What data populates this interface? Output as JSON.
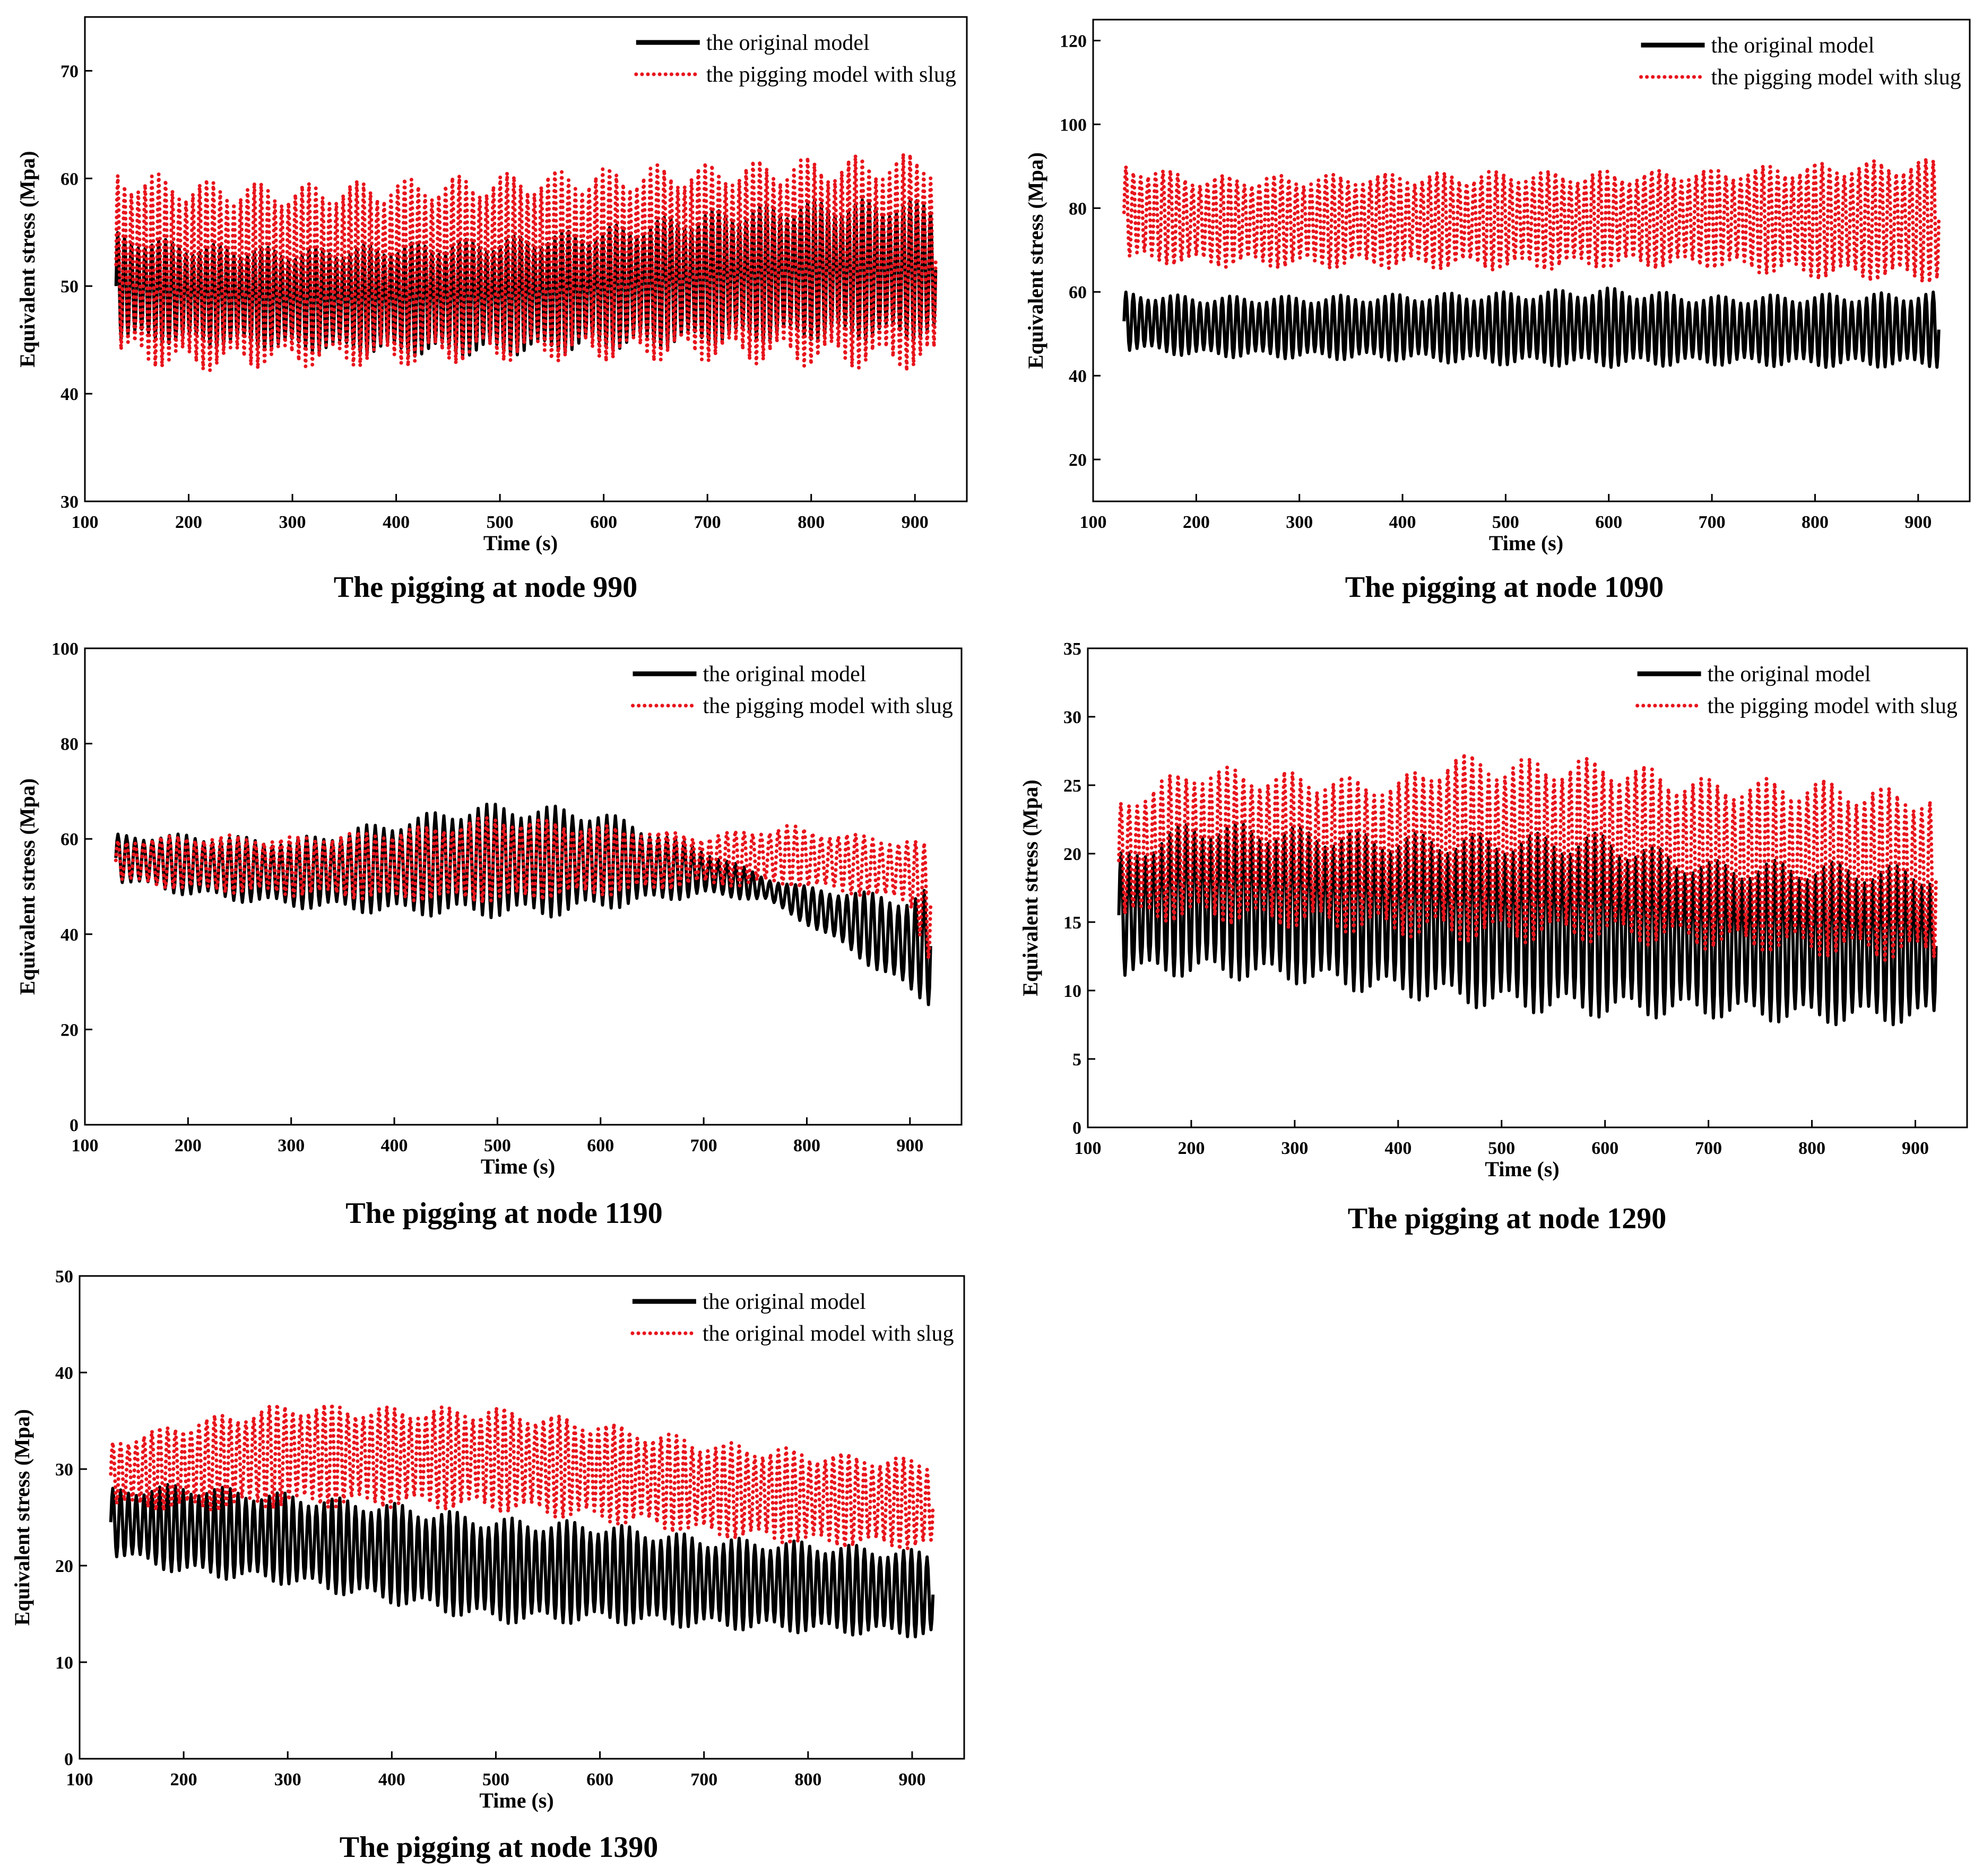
{
  "chart_data": [
    {
      "type": "line",
      "caption": "The pigging at node 990",
      "xlabel": "Time  (s)",
      "ylabel": "Equivalent stress (Mpa)",
      "xlim": [
        100,
        950
      ],
      "ylim": [
        30,
        75
      ],
      "xticks": [
        100,
        200,
        300,
        400,
        500,
        600,
        700,
        800,
        900
      ],
      "yticks": [
        30,
        40,
        50,
        60,
        70
      ],
      "legend_position": "top-right",
      "series": [
        {
          "name": "the original model",
          "color": "#000000",
          "style": "solid",
          "t_start": 130,
          "t_end": 920,
          "cycles": 120,
          "x": [
            130,
            200,
            300,
            400,
            500,
            600,
            700,
            800,
            920
          ],
          "upper": [
            55,
            54,
            53.5,
            54,
            54.5,
            55.5,
            57,
            58,
            58
          ],
          "lower": [
            45,
            44.5,
            44,
            43.5,
            43.5,
            44,
            44.5,
            45,
            45
          ]
        },
        {
          "name": "the pigging model with slug",
          "color": "#e8141c",
          "style": "dotted",
          "t_start": 130,
          "t_end": 920,
          "cycles": 120,
          "x": [
            130,
            200,
            300,
            400,
            500,
            600,
            700,
            800,
            920
          ],
          "upper": [
            61,
            60,
            59.5,
            60,
            60.5,
            61,
            61.5,
            62,
            62.5
          ],
          "lower": [
            43,
            42,
            42.5,
            42.5,
            43,
            43,
            43,
            42.5,
            42
          ]
        }
      ]
    },
    {
      "type": "line",
      "caption": "The pigging at node 1090",
      "xlabel": "Time  (s)",
      "ylabel": "Equivalent stress (Mpa)",
      "xlim": [
        100,
        950
      ],
      "ylim": [
        10,
        125
      ],
      "xticks": [
        100,
        200,
        300,
        400,
        500,
        600,
        700,
        800,
        900
      ],
      "yticks": [
        20,
        40,
        60,
        80,
        100,
        120
      ],
      "legend_position": "top-right",
      "series": [
        {
          "name": "the original model",
          "color": "#000000",
          "style": "solid",
          "t_start": 130,
          "t_end": 920,
          "cycles": 110,
          "x": [
            130,
            200,
            300,
            400,
            500,
            600,
            700,
            800,
            920
          ],
          "upper": [
            60,
            59,
            59,
            59.5,
            60,
            61,
            59,
            59.5,
            60
          ],
          "lower": [
            46,
            44.5,
            44,
            43.5,
            42.5,
            42,
            42.5,
            42,
            42
          ]
        },
        {
          "name": "the pigging model with slug",
          "color": "#e8141c",
          "style": "dotted",
          "t_start": 130,
          "t_end": 920,
          "cycles": 110,
          "x": [
            130,
            200,
            300,
            400,
            500,
            600,
            700,
            800,
            920
          ],
          "upper": [
            91,
            88,
            88,
            88.5,
            89,
            89,
            89.5,
            91,
            92
          ],
          "lower": [
            67,
            66,
            65.5,
            65.5,
            65,
            65.5,
            65.5,
            63,
            62
          ]
        }
      ]
    },
    {
      "type": "line",
      "caption": "The pigging at node 1190",
      "xlabel": "Time  (s)",
      "ylabel": "Equivalent stress (Mpa)",
      "xlim": [
        100,
        950
      ],
      "ylim": [
        0,
        100
      ],
      "xticks": [
        100,
        200,
        300,
        400,
        500,
        600,
        700,
        800,
        900
      ],
      "yticks": [
        0,
        20,
        40,
        60,
        80,
        100
      ],
      "legend_position": "top-right",
      "series": [
        {
          "name": "the original model",
          "color": "#000000",
          "style": "solid",
          "t_start": 130,
          "t_end": 920,
          "cycles": 95,
          "x": [
            130,
            200,
            300,
            400,
            480,
            550,
            600,
            700,
            760,
            800,
            850,
            900,
            920
          ],
          "upper": [
            61,
            61,
            60,
            64,
            67.5,
            67,
            66,
            58,
            52,
            50,
            49,
            48,
            50
          ],
          "lower": [
            51,
            48,
            45.5,
            44,
            43.5,
            43.5,
            45,
            48,
            47,
            42,
            35,
            27,
            25
          ]
        },
        {
          "name": "the pigging model with slug",
          "color": "#e8141c",
          "style": "dotted",
          "t_start": 130,
          "t_end": 920,
          "cycles": 95,
          "x": [
            130,
            200,
            300,
            400,
            500,
            600,
            700,
            780,
            850,
            900,
            920
          ],
          "upper": [
            60,
            61,
            60.5,
            62,
            65,
            63,
            61,
            63,
            61,
            60,
            59
          ],
          "lower": [
            51,
            49,
            48,
            47,
            46.5,
            48,
            50,
            50,
            48,
            46,
            33
          ]
        }
      ]
    },
    {
      "type": "line",
      "caption": "The pigging at node 1290",
      "xlabel": "Time (s)",
      "ylabel": "Equivalent stress (Mpa)",
      "xlim": [
        100,
        950
      ],
      "ylim": [
        0,
        35
      ],
      "xticks": [
        100,
        200,
        300,
        400,
        500,
        600,
        700,
        800,
        900
      ],
      "yticks": [
        0,
        5,
        10,
        15,
        20,
        25,
        30,
        35
      ],
      "legend_position": "top-right",
      "series": [
        {
          "name": "the original model",
          "color": "#000000",
          "style": "solid",
          "t_start": 130,
          "t_end": 920,
          "cycles": 100,
          "x": [
            130,
            200,
            300,
            400,
            500,
            600,
            700,
            800,
            920
          ],
          "upper": [
            20,
            22.5,
            22,
            21.5,
            21.5,
            21.5,
            19.5,
            19.5,
            19
          ],
          "lower": [
            11,
            11,
            10.5,
            9.5,
            8.5,
            8,
            8,
            7.5,
            7.5
          ]
        },
        {
          "name": "the pigging model with slug",
          "color": "#e8141c",
          "style": "dotted",
          "t_start": 130,
          "t_end": 920,
          "cycles": 100,
          "x": [
            130,
            200,
            300,
            400,
            450,
            500,
            600,
            700,
            800,
            920
          ],
          "upper": [
            24,
            26.5,
            26,
            25.5,
            27.5,
            27,
            27,
            25.5,
            25.5,
            24.5
          ],
          "lower": [
            15,
            15,
            14.5,
            14,
            13.5,
            13.5,
            13.5,
            13,
            12.5,
            12
          ]
        }
      ]
    },
    {
      "type": "line",
      "caption": "The pigging at node 1390",
      "xlabel": "Time (s)",
      "ylabel": "Equivalent stress (Mpa)",
      "xlim": [
        100,
        950
      ],
      "ylim": [
        0,
        50
      ],
      "xticks": [
        100,
        200,
        300,
        400,
        500,
        600,
        700,
        800,
        900
      ],
      "yticks": [
        0,
        10,
        20,
        30,
        40,
        50
      ],
      "legend_position": "top-right",
      "series": [
        {
          "name": "the original model",
          "color": "#000000",
          "style": "solid",
          "t_start": 130,
          "t_end": 920,
          "cycles": 105,
          "x": [
            130,
            200,
            300,
            400,
            500,
            600,
            700,
            800,
            920
          ],
          "upper": [
            28,
            28.5,
            27.5,
            26.5,
            25,
            24.5,
            23,
            22.5,
            21.5
          ],
          "lower": [
            21,
            19,
            18,
            16,
            14,
            14,
            13.5,
            13,
            12.5
          ]
        },
        {
          "name": "the original model with slug",
          "color": "#e8141c",
          "style": "dotted",
          "t_start": 130,
          "t_end": 920,
          "cycles": 105,
          "x": [
            130,
            200,
            300,
            400,
            500,
            600,
            700,
            800,
            920
          ],
          "upper": [
            33,
            35,
            37,
            36.5,
            36.5,
            35,
            33,
            32,
            31
          ],
          "lower": [
            26,
            25.5,
            26,
            26,
            25.5,
            24.5,
            23,
            22,
            21.5
          ]
        }
      ]
    }
  ]
}
